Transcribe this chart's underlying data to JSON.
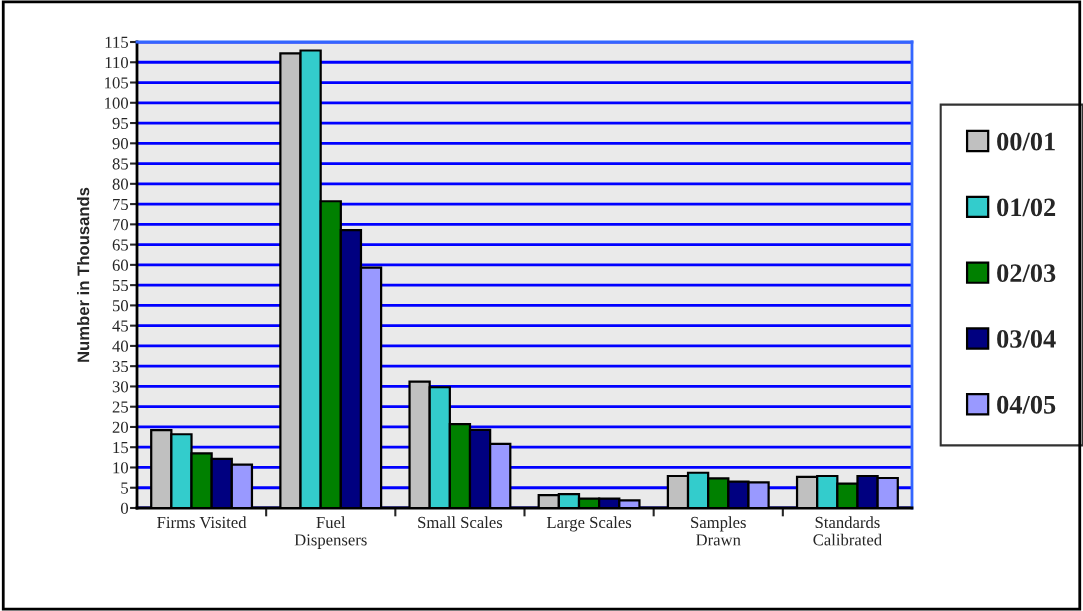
{
  "chart_data": {
    "type": "bar",
    "ylabel": "Number in Thousands",
    "categories": [
      "Firms Visited",
      "Fuel\nDispensers",
      "Small Scales",
      "Large Scales",
      "Samples\nDrawn",
      "Standards\nCalibrated"
    ],
    "series": [
      {
        "name": "00/01",
        "color": "#c0c0c0",
        "values": [
          19.2,
          112.2,
          31.2,
          3.2,
          7.9,
          7.7
        ]
      },
      {
        "name": "01/02",
        "color": "#33cccc",
        "values": [
          18.2,
          112.9,
          29.8,
          3.4,
          8.7,
          7.9
        ]
      },
      {
        "name": "02/03",
        "color": "#008000",
        "values": [
          13.5,
          75.7,
          20.7,
          2.3,
          7.3,
          6.0
        ]
      },
      {
        "name": "03/04",
        "color": "#000080",
        "values": [
          12.1,
          68.6,
          19.3,
          2.3,
          6.5,
          7.9
        ]
      },
      {
        "name": "04/05",
        "color": "#9999ff",
        "values": [
          10.7,
          59.3,
          15.8,
          1.9,
          6.3,
          7.4
        ]
      }
    ],
    "ylim": [
      0,
      115
    ],
    "yticks": [
      0,
      5,
      10,
      15,
      20,
      25,
      30,
      35,
      40,
      45,
      50,
      55,
      60,
      65,
      70,
      75,
      80,
      85,
      90,
      95,
      100,
      105,
      110,
      115
    ],
    "grid": "y",
    "legend": "right"
  }
}
